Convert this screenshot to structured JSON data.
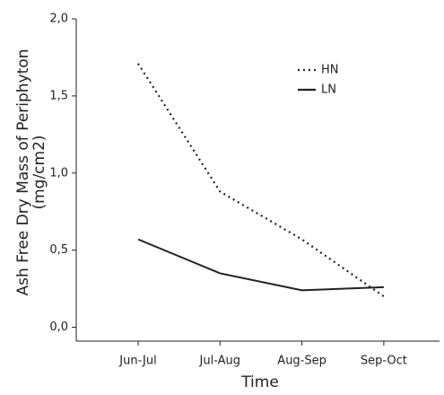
{
  "chart_data": {
    "type": "line",
    "categories": [
      "Jun-Jul",
      "Jul-Aug",
      "Aug-Sep",
      "Sep-Oct"
    ],
    "series": [
      {
        "name": "HN",
        "color": "#222222",
        "style": "dotted",
        "values": [
          1.71,
          0.88,
          0.57,
          0.2
        ]
      },
      {
        "name": "LN",
        "color": "#222222",
        "style": "solid",
        "values": [
          0.57,
          0.35,
          0.24,
          0.26
        ]
      }
    ],
    "ylim": [
      -0.09,
      2.0
    ],
    "yticks": [
      {
        "value": 0,
        "label": "0,0"
      },
      {
        "value": 0.5,
        "label": "0,5"
      },
      {
        "value": 1.0,
        "label": "1,0"
      },
      {
        "value": 1.5,
        "label": "1,5"
      },
      {
        "value": 2.0,
        "label": "2,0"
      }
    ],
    "xlabel": "Time",
    "ylabel": [
      "Ash Free Dry Mass of Periphyton",
      "(mg/cm2)"
    ],
    "legend": "upper-right"
  }
}
